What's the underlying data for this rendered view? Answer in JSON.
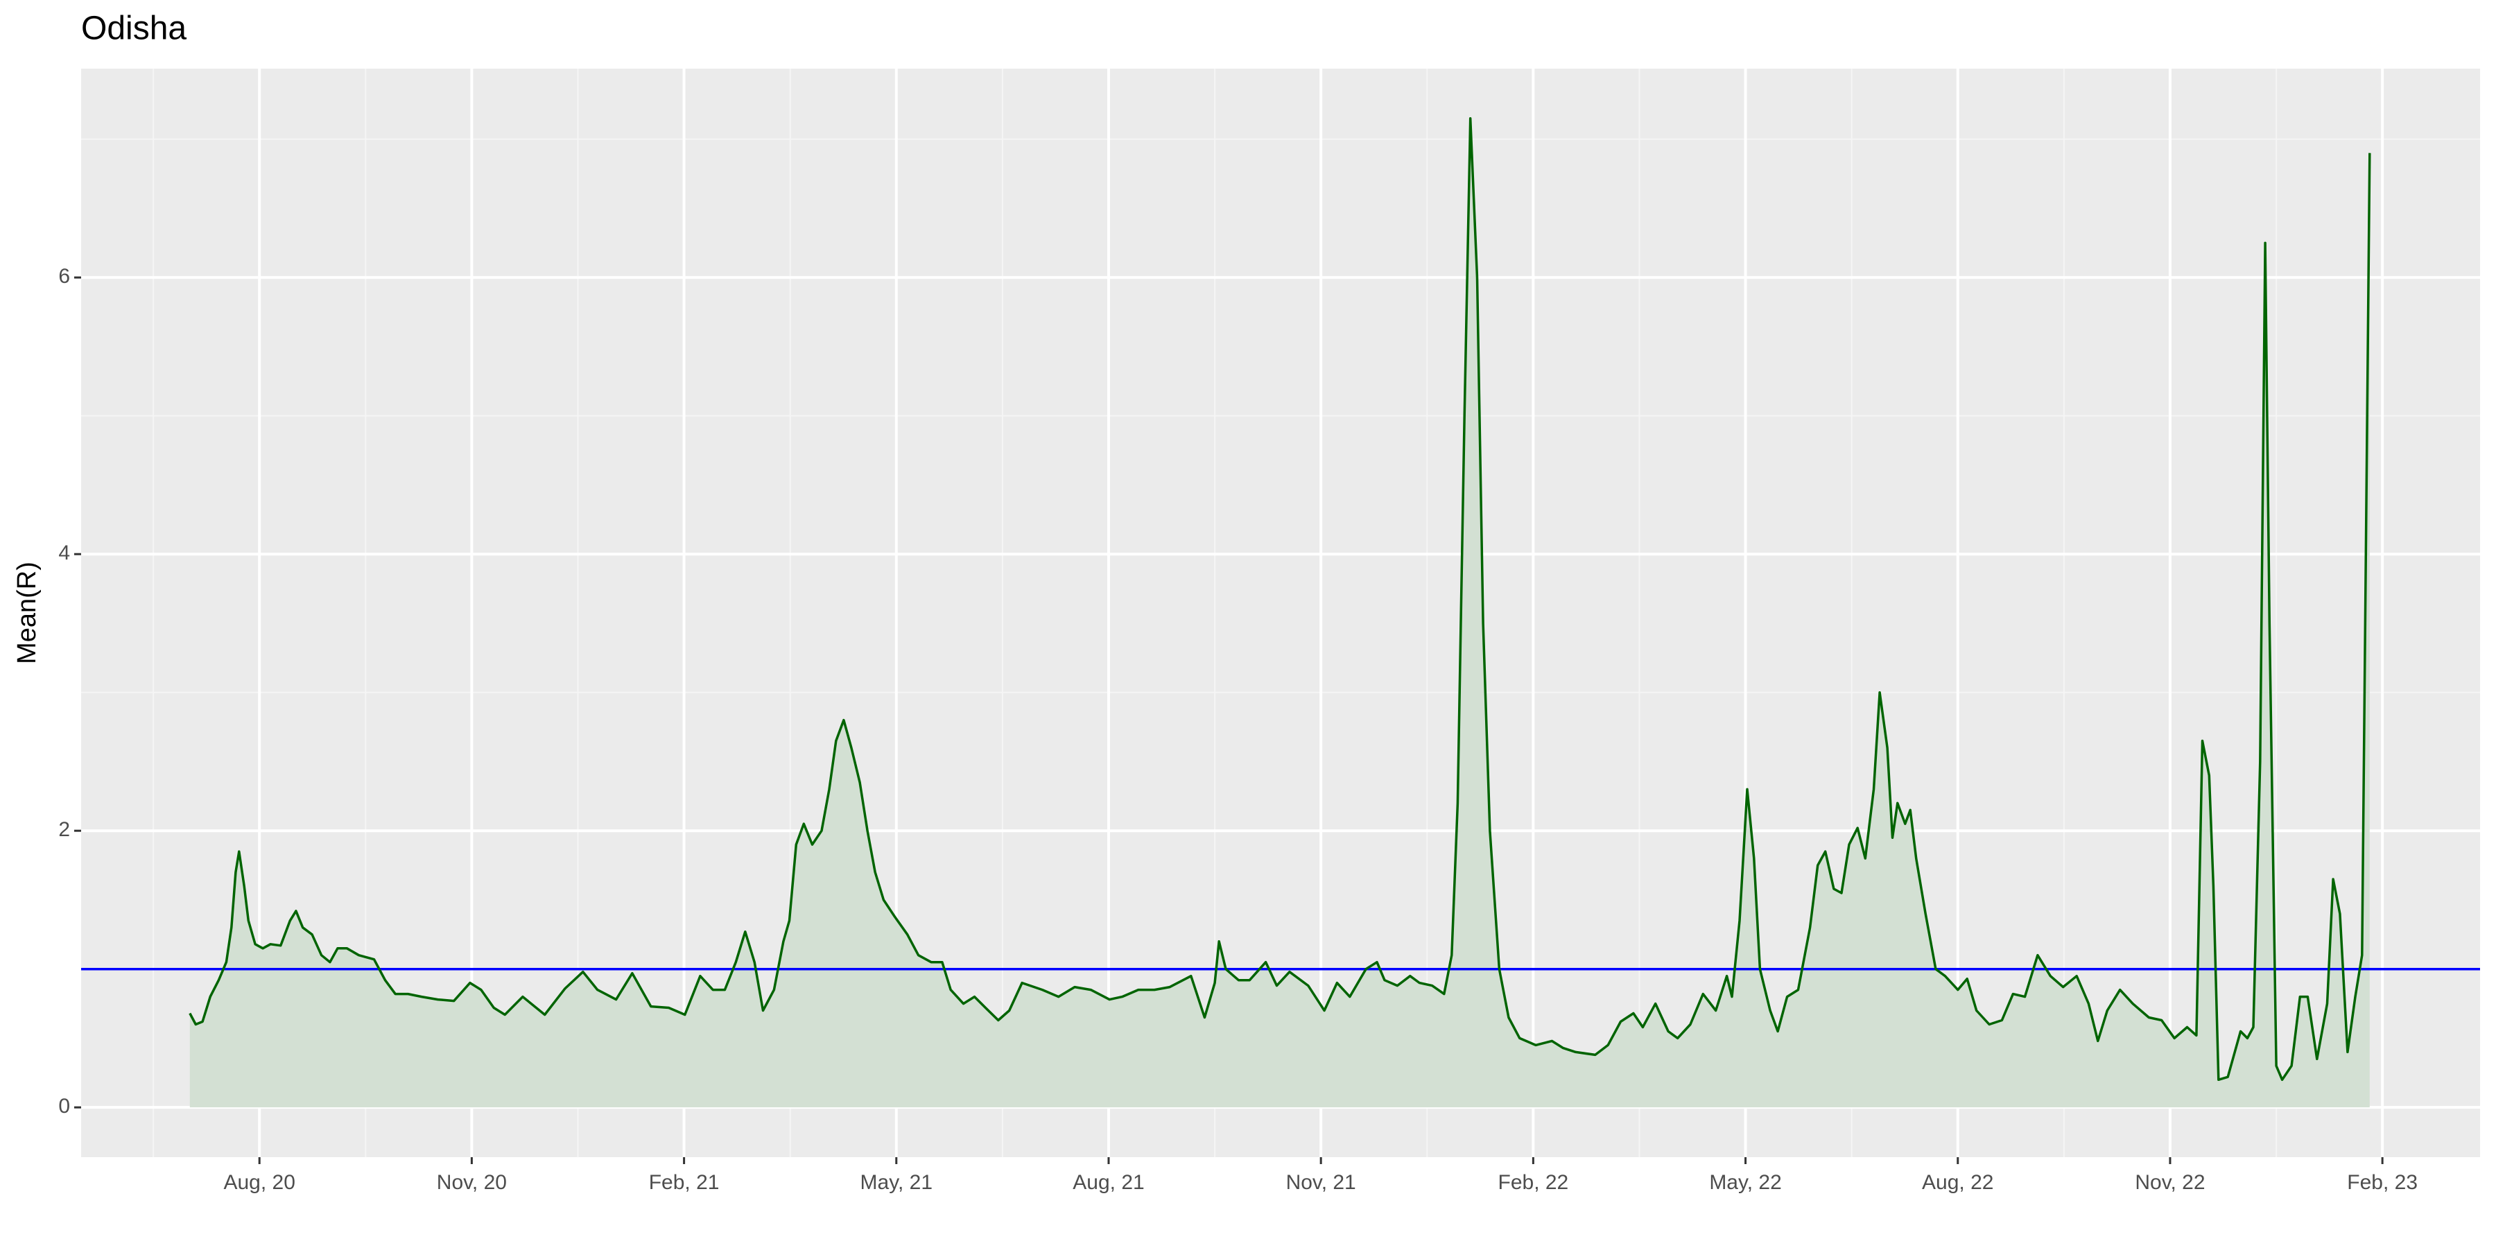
{
  "chart_data": {
    "type": "area_line",
    "title": "Odisha",
    "y_label": "Mean(R)",
    "color": "#006400",
    "fill": "#d3e0d3",
    "hline": 1,
    "hline_color": "#0000ff",
    "grid": true,
    "xlim": [
      2020.373,
      2023.198
    ],
    "xticks": [
      {
        "value": 2020.583,
        "label": "Aug, 20"
      },
      {
        "value": 2020.833,
        "label": "Nov, 20"
      },
      {
        "value": 2021.083,
        "label": "Feb, 21"
      },
      {
        "value": 2021.333,
        "label": "May, 21"
      },
      {
        "value": 2021.583,
        "label": "Aug, 21"
      },
      {
        "value": 2021.833,
        "label": "Nov, 21"
      },
      {
        "value": 2022.083,
        "label": "Feb, 22"
      },
      {
        "value": 2022.333,
        "label": "May, 22"
      },
      {
        "value": 2022.583,
        "label": "Aug, 22"
      },
      {
        "value": 2022.833,
        "label": "Nov, 22"
      },
      {
        "value": 2023.083,
        "label": "Feb, 23"
      }
    ],
    "ylim": [
      -0.36,
      7.51
    ],
    "yticks": [
      0,
      2,
      4,
      6
    ],
    "x": [
      2020.501,
      2020.508,
      2020.516,
      2020.525,
      2020.535,
      2020.544,
      2020.55,
      2020.555,
      2020.559,
      2020.565,
      2020.57,
      2020.578,
      2020.587,
      2020.596,
      2020.608,
      2020.619,
      2020.626,
      2020.634,
      2020.645,
      2020.656,
      2020.666,
      2020.675,
      2020.686,
      2020.7,
      2020.718,
      2020.731,
      2020.743,
      2020.758,
      2020.774,
      2020.793,
      2020.812,
      2020.831,
      2020.844,
      2020.859,
      2020.872,
      2020.893,
      2020.919,
      2020.943,
      2020.964,
      2020.981,
      2021.003,
      2021.022,
      2021.044,
      2021.065,
      2021.084,
      2021.102,
      2021.117,
      2021.131,
      2021.144,
      2021.155,
      2021.166,
      2021.176,
      2021.189,
      2021.2,
      2021.207,
      2021.215,
      2021.224,
      2021.234,
      2021.245,
      2021.254,
      2021.262,
      2021.271,
      2021.28,
      2021.29,
      2021.299,
      2021.308,
      2021.318,
      2021.331,
      2021.346,
      2021.359,
      2021.374,
      2021.387,
      2021.397,
      2021.412,
      2021.425,
      2021.438,
      2021.453,
      2021.466,
      2021.481,
      2021.505,
      2021.524,
      2021.543,
      2021.562,
      2021.584,
      2021.599,
      2021.618,
      2021.637,
      2021.655,
      2021.68,
      2021.696,
      2021.708,
      2021.713,
      2021.721,
      2021.736,
      2021.749,
      2021.768,
      2021.781,
      2021.796,
      2021.818,
      2021.837,
      2021.852,
      2021.867,
      2021.886,
      2021.899,
      2021.908,
      2021.923,
      2021.938,
      2021.949,
      2021.964,
      2021.978,
      2021.987,
      2021.994,
      2022.002,
      2022.009,
      2022.017,
      2022.024,
      2022.032,
      2022.043,
      2022.054,
      2022.067,
      2022.086,
      2022.105,
      2022.118,
      2022.133,
      2022.156,
      2022.171,
      2022.186,
      2022.201,
      2022.212,
      2022.227,
      2022.242,
      2022.253,
      2022.268,
      2022.283,
      2022.298,
      2022.311,
      2022.317,
      2022.326,
      2022.335,
      2022.343,
      2022.35,
      2022.362,
      2022.371,
      2022.382,
      2022.395,
      2022.409,
      2022.418,
      2022.427,
      2022.437,
      2022.446,
      2022.455,
      2022.465,
      2022.474,
      2022.484,
      2022.491,
      2022.5,
      2022.506,
      2022.512,
      2022.521,
      2022.527,
      2022.534,
      2022.545,
      2022.557,
      2022.568,
      2022.583,
      2022.594,
      2022.605,
      2022.62,
      2022.635,
      2022.648,
      2022.662,
      2022.677,
      2022.692,
      2022.707,
      2022.723,
      2022.737,
      2022.748,
      2022.759,
      2022.774,
      2022.789,
      2022.808,
      2022.823,
      2022.838,
      2022.853,
      2022.864,
      2022.871,
      2022.879,
      2022.884,
      2022.89,
      2022.901,
      2022.916,
      2022.924,
      2022.931,
      2022.939,
      2022.945,
      2022.95,
      2022.958,
      2022.965,
      2022.976,
      2022.986,
      2022.995,
      2023.006,
      2023.018,
      2023.025,
      2023.033,
      2023.042,
      2023.051,
      2023.059,
      2023.068
    ],
    "values": [
      0.68,
      0.6,
      0.62,
      0.8,
      0.92,
      1.05,
      1.3,
      1.7,
      1.85,
      1.6,
      1.35,
      1.18,
      1.15,
      1.18,
      1.17,
      1.35,
      1.42,
      1.3,
      1.25,
      1.1,
      1.05,
      1.15,
      1.15,
      1.1,
      1.07,
      0.92,
      0.82,
      0.82,
      0.8,
      0.78,
      0.77,
      0.9,
      0.85,
      0.72,
      0.67,
      0.8,
      0.67,
      0.86,
      0.98,
      0.85,
      0.78,
      0.97,
      0.73,
      0.72,
      0.67,
      0.95,
      0.85,
      0.85,
      1.05,
      1.27,
      1.05,
      0.7,
      0.85,
      1.2,
      1.35,
      1.9,
      2.05,
      1.9,
      2.0,
      2.3,
      2.65,
      2.8,
      2.6,
      2.35,
      2.0,
      1.7,
      1.5,
      1.38,
      1.25,
      1.1,
      1.05,
      1.05,
      0.85,
      0.75,
      0.8,
      0.72,
      0.63,
      0.7,
      0.9,
      0.85,
      0.8,
      0.87,
      0.85,
      0.78,
      0.8,
      0.85,
      0.85,
      0.87,
      0.95,
      0.65,
      0.9,
      1.2,
      1.0,
      0.92,
      0.92,
      1.05,
      0.88,
      0.98,
      0.88,
      0.7,
      0.9,
      0.8,
      1.0,
      1.05,
      0.92,
      0.88,
      0.95,
      0.9,
      0.88,
      0.82,
      1.1,
      2.2,
      5.0,
      7.15,
      6.0,
      3.5,
      2.0,
      1.0,
      0.65,
      0.5,
      0.45,
      0.48,
      0.43,
      0.4,
      0.38,
      0.45,
      0.62,
      0.68,
      0.58,
      0.75,
      0.55,
      0.5,
      0.6,
      0.82,
      0.7,
      0.95,
      0.8,
      1.35,
      2.3,
      1.8,
      1.0,
      0.7,
      0.55,
      0.8,
      0.85,
      1.3,
      1.75,
      1.85,
      1.58,
      1.55,
      1.9,
      2.02,
      1.8,
      2.3,
      3.0,
      2.6,
      1.95,
      2.2,
      2.05,
      2.15,
      1.8,
      1.4,
      1.0,
      0.95,
      0.85,
      0.93,
      0.7,
      0.6,
      0.63,
      0.82,
      0.8,
      1.1,
      0.95,
      0.87,
      0.95,
      0.75,
      0.48,
      0.7,
      0.85,
      0.75,
      0.65,
      0.63,
      0.5,
      0.58,
      0.52,
      2.65,
      2.4,
      1.6,
      0.2,
      0.22,
      0.55,
      0.5,
      0.58,
      2.5,
      6.25,
      3.5,
      0.3,
      0.2,
      0.3,
      0.8,
      0.8,
      0.35,
      0.75,
      1.65,
      1.4,
      0.4,
      0.8,
      1.1,
      6.9
    ]
  }
}
